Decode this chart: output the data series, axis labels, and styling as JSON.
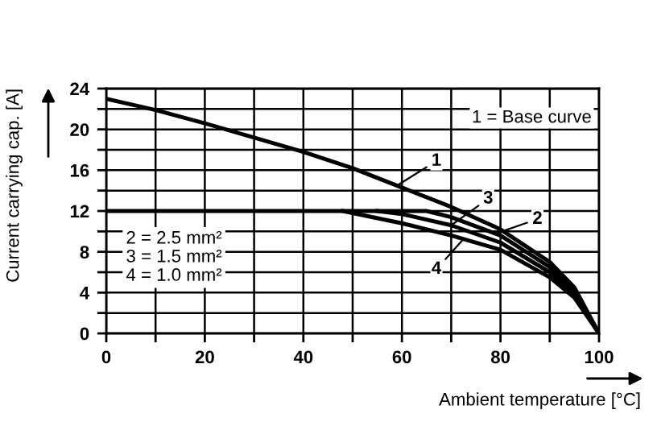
{
  "chart_data": {
    "type": "line",
    "xlabel": "Ambient temperature [°C]",
    "ylabel": "Current carrying cap. [A]",
    "xlim": [
      0,
      100
    ],
    "ylim": [
      0,
      24
    ],
    "xticks": [
      0,
      {
        "value": 10,
        "label": null
      },
      20,
      {
        "value": 30,
        "label": null
      },
      40,
      {
        "value": 50,
        "label": null
      },
      60,
      {
        "value": 70,
        "label": null
      },
      80,
      {
        "value": 90,
        "label": null
      },
      100
    ],
    "yticks": [
      0,
      {
        "value": 2,
        "label": null
      },
      4,
      {
        "value": 6,
        "label": null
      },
      8,
      {
        "value": 10,
        "label": null
      },
      12,
      {
        "value": 14,
        "label": null
      },
      16,
      {
        "value": 18,
        "label": null
      },
      20,
      {
        "value": 22,
        "label": null
      },
      24
    ],
    "grid": true,
    "marker": "none",
    "line_style": "solid",
    "series": [
      {
        "name": "1",
        "color": "#000000",
        "x": [
          0,
          10,
          20,
          30,
          40,
          50,
          60,
          70,
          80,
          90,
          95,
          100
        ],
        "values": [
          23,
          21.9,
          20.6,
          19.2,
          17.8,
          16.2,
          14.3,
          12.4,
          10.2,
          7,
          4.5,
          0
        ]
      },
      {
        "name": "2",
        "color": "#000000",
        "x": [
          0,
          65,
          70,
          80,
          90,
          95,
          100
        ],
        "values": [
          12,
          12,
          11.4,
          9.6,
          6.5,
          4,
          0
        ]
      },
      {
        "name": "3",
        "color": "#000000",
        "x": [
          55,
          60,
          70,
          80,
          90,
          95,
          100
        ],
        "values": [
          12,
          11.7,
          10.6,
          8.9,
          6,
          3.8,
          0
        ]
      },
      {
        "name": "4",
        "color": "#000000",
        "x": [
          48,
          60,
          70,
          80,
          90,
          95,
          100
        ],
        "values": [
          12,
          10.8,
          9.6,
          8.2,
          5.5,
          3.5,
          0
        ]
      }
    ],
    "annotations": [
      "1 = Base curve",
      "2 = 2.5 mm²",
      "3 = 1.5 mm²",
      "4 = 1.0 mm²"
    ]
  }
}
